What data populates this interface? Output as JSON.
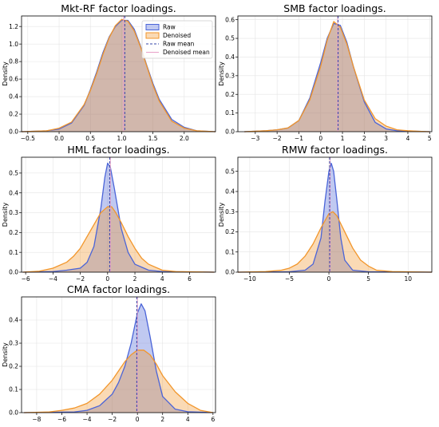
{
  "colors": {
    "raw": "#4a64d8",
    "denoised": "#f2962b",
    "raw_mean": "#3344aa",
    "denoised_mean": "#e8a0c8",
    "grid": "#e4e4e4"
  },
  "legend": {
    "raw": "Raw",
    "denoised": "Denoised",
    "raw_mean": "Raw mean",
    "denoised_mean": "Denoised mean",
    "placement": "upper-right (first panel)"
  },
  "chart_data": [
    {
      "type": "area",
      "title": "Mkt-RF factor loadings.",
      "ylabel": "Density",
      "xlim": [
        -0.6,
        2.5
      ],
      "ylim": [
        0,
        1.32
      ],
      "xticks": [
        -0.5,
        0.0,
        0.5,
        1.0,
        1.5,
        2.0
      ],
      "xtick_labels": [
        "−0.5",
        "0.0",
        "0.5",
        "1.0",
        "1.5",
        "2.0"
      ],
      "yticks": [
        0,
        0.2,
        0.4,
        0.6,
        0.8,
        1.0,
        1.2
      ],
      "ytick_labels": [
        "0.0",
        "0.2",
        "0.4",
        "0.6",
        "0.8",
        "1.0",
        "1.2"
      ],
      "series": [
        {
          "name": "Raw",
          "x": [
            -0.6,
            -0.2,
            0.0,
            0.2,
            0.4,
            0.5,
            0.6,
            0.7,
            0.8,
            0.9,
            1.0,
            1.1,
            1.2,
            1.3,
            1.4,
            1.5,
            1.6,
            1.8,
            2.0,
            2.2,
            2.5
          ],
          "y": [
            0,
            0.01,
            0.03,
            0.1,
            0.3,
            0.48,
            0.68,
            0.9,
            1.08,
            1.2,
            1.27,
            1.27,
            1.17,
            0.98,
            0.76,
            0.55,
            0.37,
            0.14,
            0.05,
            0.01,
            0
          ]
        },
        {
          "name": "Denoised",
          "x": [
            -0.6,
            -0.2,
            0.0,
            0.2,
            0.4,
            0.5,
            0.6,
            0.7,
            0.8,
            0.9,
            1.0,
            1.1,
            1.2,
            1.3,
            1.4,
            1.5,
            1.6,
            1.8,
            2.0,
            2.2,
            2.5
          ],
          "y": [
            0,
            0.01,
            0.04,
            0.11,
            0.31,
            0.47,
            0.66,
            0.88,
            1.07,
            1.21,
            1.28,
            1.26,
            1.15,
            0.97,
            0.75,
            0.53,
            0.35,
            0.12,
            0.04,
            0.01,
            0
          ]
        }
      ],
      "raw_mean": 1.05,
      "denoised_mean": 1.03
    },
    {
      "type": "area",
      "title": "SMB factor loadings.",
      "ylabel": "Density",
      "xlim": [
        -3.8,
        5.1
      ],
      "ylim": [
        0,
        0.62
      ],
      "xticks": [
        -3,
        -2,
        -1,
        0,
        1,
        2,
        3,
        4,
        5
      ],
      "xtick_labels": [
        "−3",
        "−2",
        "−1",
        "0",
        "1",
        "2",
        "3",
        "4",
        "5"
      ],
      "yticks": [
        0,
        0.1,
        0.2,
        0.3,
        0.4,
        0.5,
        0.6
      ],
      "ytick_labels": [
        "0.0",
        "0.1",
        "0.2",
        "0.3",
        "0.4",
        "0.5",
        "0.6"
      ],
      "series": [
        {
          "name": "Raw",
          "x": [
            -3.5,
            -2.5,
            -2.0,
            -1.5,
            -1.0,
            -0.5,
            0.0,
            0.3,
            0.6,
            0.9,
            1.2,
            1.5,
            2.0,
            2.5,
            3.0,
            3.5,
            4.0,
            4.5,
            5.0
          ],
          "y": [
            0,
            0.005,
            0.01,
            0.02,
            0.06,
            0.18,
            0.37,
            0.5,
            0.58,
            0.57,
            0.48,
            0.35,
            0.16,
            0.05,
            0.015,
            0.005,
            0.003,
            0.002,
            0
          ]
        },
        {
          "name": "Denoised",
          "x": [
            -3.5,
            -2.5,
            -2.0,
            -1.5,
            -1.0,
            -0.5,
            0.0,
            0.3,
            0.6,
            0.9,
            1.2,
            1.5,
            2.0,
            2.5,
            3.0,
            3.5,
            4.0,
            4.5,
            5.0
          ],
          "y": [
            0,
            0.005,
            0.01,
            0.02,
            0.06,
            0.17,
            0.35,
            0.49,
            0.59,
            0.56,
            0.47,
            0.35,
            0.17,
            0.07,
            0.03,
            0.01,
            0.005,
            0.002,
            0
          ]
        }
      ],
      "raw_mean": 0.8,
      "denoised_mean": 0.78
    },
    {
      "type": "area",
      "title": "HML factor loadings.",
      "ylabel": "Density",
      "xlim": [
        -6.3,
        7.9
      ],
      "ylim": [
        0,
        0.58
      ],
      "xticks": [
        -6,
        -4,
        -2,
        0,
        2,
        4,
        6
      ],
      "xtick_labels": [
        "−6",
        "−4",
        "−2",
        "0",
        "2",
        "4",
        "6"
      ],
      "yticks": [
        0,
        0.1,
        0.2,
        0.3,
        0.4,
        0.5
      ],
      "ytick_labels": [
        "0.0",
        "0.1",
        "0.2",
        "0.3",
        "0.4",
        "0.5"
      ],
      "series": [
        {
          "name": "Raw",
          "x": [
            -6.2,
            -4.0,
            -3.0,
            -2.0,
            -1.5,
            -1.0,
            -0.5,
            -0.2,
            0.0,
            0.2,
            0.5,
            1.0,
            1.5,
            2.0,
            3.0,
            4.0,
            7.8
          ],
          "y": [
            0,
            0.003,
            0.01,
            0.02,
            0.05,
            0.13,
            0.32,
            0.48,
            0.55,
            0.53,
            0.42,
            0.22,
            0.1,
            0.04,
            0.01,
            0.003,
            0
          ]
        },
        {
          "name": "Denoised",
          "x": [
            -6.2,
            -5.0,
            -4.0,
            -3.0,
            -2.5,
            -2.0,
            -1.5,
            -1.0,
            -0.5,
            0.0,
            0.3,
            0.6,
            1.0,
            1.5,
            2.0,
            2.5,
            3.0,
            4.0,
            5.0,
            7.8
          ],
          "y": [
            0,
            0.005,
            0.02,
            0.05,
            0.08,
            0.12,
            0.18,
            0.24,
            0.3,
            0.33,
            0.33,
            0.3,
            0.25,
            0.18,
            0.12,
            0.07,
            0.04,
            0.01,
            0.003,
            0
          ]
        }
      ],
      "raw_mean": 0.15,
      "denoised_mean": 0.2
    },
    {
      "type": "area",
      "title": "RMW factor loadings.",
      "ylabel": "Density",
      "xlim": [
        -11.5,
        13.0
      ],
      "ylim": [
        0,
        0.57
      ],
      "xticks": [
        -10,
        -5,
        0,
        5,
        10
      ],
      "xtick_labels": [
        "−10",
        "−5",
        "0",
        "5",
        "10"
      ],
      "yticks": [
        0,
        0.1,
        0.2,
        0.3,
        0.4,
        0.5
      ],
      "ytick_labels": [
        "0.0",
        "0.1",
        "0.2",
        "0.3",
        "0.4",
        "0.5"
      ],
      "series": [
        {
          "name": "Raw",
          "x": [
            -11.5,
            -5.0,
            -3.0,
            -2.0,
            -1.0,
            -0.5,
            0.0,
            0.3,
            0.6,
            1.0,
            1.5,
            2.0,
            3.0,
            5.0,
            13.0
          ],
          "y": [
            0,
            0.002,
            0.01,
            0.04,
            0.17,
            0.35,
            0.5,
            0.54,
            0.5,
            0.36,
            0.17,
            0.06,
            0.01,
            0.002,
            0
          ]
        },
        {
          "name": "Denoised",
          "x": [
            -11.5,
            -8.0,
            -6.0,
            -5.0,
            -4.0,
            -3.0,
            -2.0,
            -1.0,
            0.0,
            0.5,
            1.0,
            2.0,
            3.0,
            4.0,
            5.0,
            6.0,
            8.0,
            13.0
          ],
          "y": [
            0,
            0.003,
            0.01,
            0.02,
            0.04,
            0.08,
            0.14,
            0.22,
            0.29,
            0.3,
            0.28,
            0.2,
            0.12,
            0.06,
            0.03,
            0.01,
            0.003,
            0
          ]
        }
      ],
      "raw_mean": 0.1,
      "denoised_mean": 0.15
    },
    {
      "type": "area",
      "title": "CMA factor loadings.",
      "ylabel": "Density",
      "xlim": [
        -9.2,
        6.2
      ],
      "ylim": [
        0,
        0.5
      ],
      "xticks": [
        -8,
        -6,
        -4,
        -2,
        0,
        2,
        4,
        6
      ],
      "xtick_labels": [
        "−8",
        "−6",
        "−4",
        "−2",
        "0",
        "2",
        "4",
        "6"
      ],
      "yticks": [
        0,
        0.1,
        0.2,
        0.3,
        0.4
      ],
      "ytick_labels": [
        "0.0",
        "0.1",
        "0.2",
        "0.3",
        "0.4"
      ],
      "series": [
        {
          "name": "Raw",
          "x": [
            -9.0,
            -5.0,
            -4.0,
            -3.0,
            -2.0,
            -1.5,
            -1.0,
            -0.5,
            0.0,
            0.3,
            0.6,
            1.0,
            1.5,
            2.0,
            3.0,
            4.0,
            6.0
          ],
          "y": [
            0,
            0.003,
            0.01,
            0.03,
            0.08,
            0.13,
            0.2,
            0.3,
            0.43,
            0.47,
            0.44,
            0.33,
            0.18,
            0.07,
            0.015,
            0.004,
            0
          ]
        },
        {
          "name": "Denoised",
          "x": [
            -9.0,
            -7.0,
            -6.0,
            -5.0,
            -4.0,
            -3.0,
            -2.0,
            -1.5,
            -1.0,
            -0.5,
            0.0,
            0.5,
            1.0,
            1.5,
            2.0,
            3.0,
            4.0,
            5.0,
            6.0
          ],
          "y": [
            0,
            0.003,
            0.01,
            0.02,
            0.04,
            0.08,
            0.14,
            0.18,
            0.22,
            0.25,
            0.27,
            0.27,
            0.25,
            0.21,
            0.16,
            0.09,
            0.04,
            0.01,
            0
          ]
        }
      ],
      "raw_mean": -0.05,
      "denoised_mean": 0.0
    }
  ]
}
